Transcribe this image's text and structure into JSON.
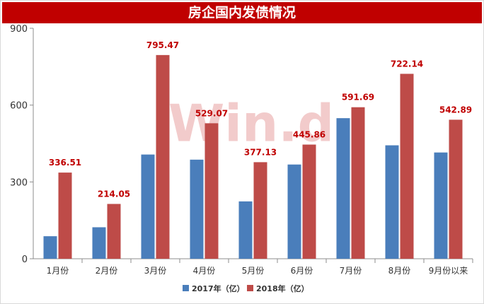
{
  "chart_data": {
    "type": "bar",
    "title": "房企国内发债情况",
    "categories": [
      "1月份",
      "2月份",
      "3月份",
      "4月份",
      "5月份",
      "6月份",
      "7月份",
      "8月份",
      "9月份以来"
    ],
    "series": [
      {
        "name": "2017年（亿）",
        "color": "#4a7ebb",
        "values": [
          88,
          123,
          407,
          387,
          224,
          368,
          549,
          443,
          415
        ]
      },
      {
        "name": "2018年（亿）",
        "color": "#be4b48",
        "values": [
          336.51,
          214.05,
          795.47,
          529.07,
          377.13,
          445.86,
          591.69,
          722.14,
          542.89
        ]
      }
    ],
    "data_labels": [
      "336.51",
      "214.05",
      "795.47",
      "529.07",
      "377.13",
      "445.86",
      "591.69",
      "722.14",
      "542.89"
    ],
    "label_color": "#c00000",
    "ylim": [
      0,
      900
    ],
    "yticks": [
      0,
      300,
      600,
      900
    ],
    "xlabel": "",
    "ylabel": "",
    "legend_position": "bottom",
    "grid": false,
    "watermark": "Win.d"
  }
}
